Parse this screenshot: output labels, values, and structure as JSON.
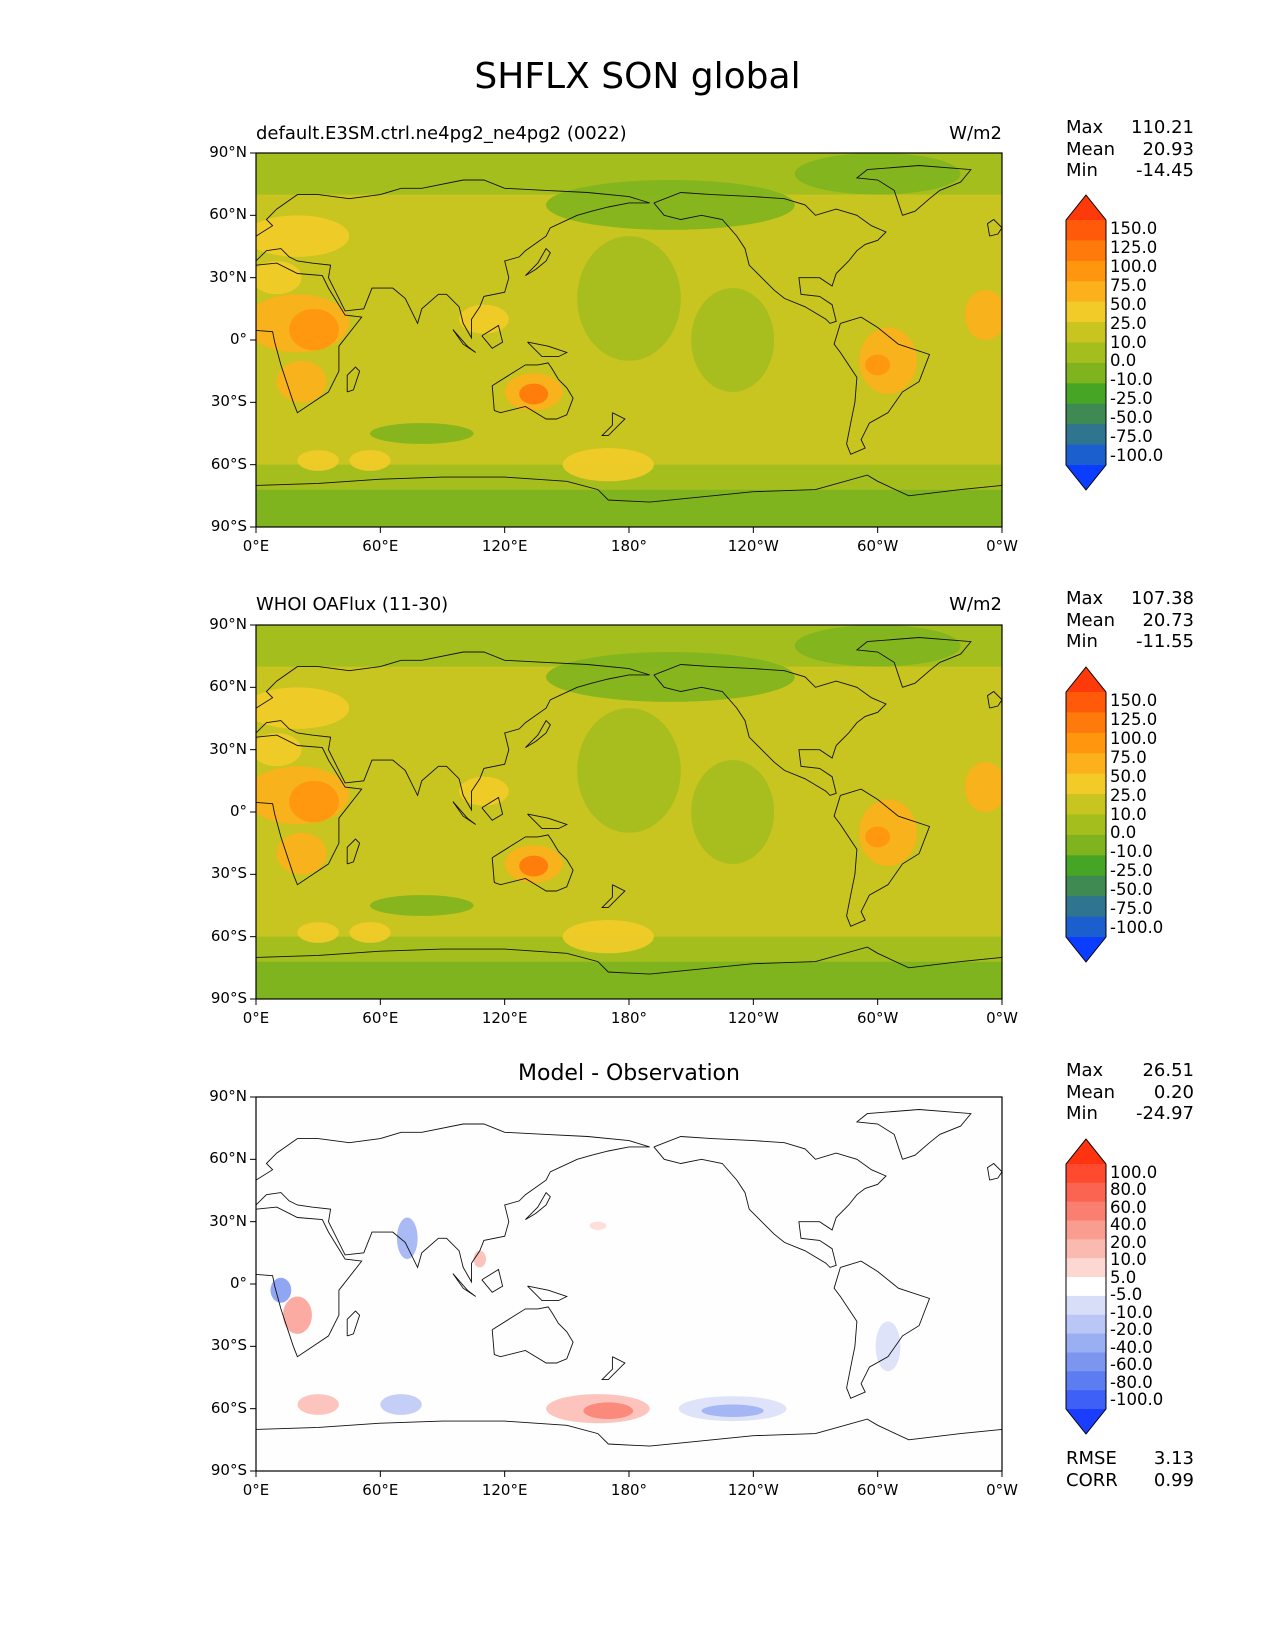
{
  "title": "SHFLX SON global",
  "chart_data": [
    {
      "type": "heatmap",
      "panel": "test",
      "left_title": "default.E3SM.ctrl.ne4pg2_ne4pg2 (0022)",
      "units": "W/m2",
      "stats": {
        "max": "110.21",
        "mean": "20.93",
        "min": "-14.45"
      },
      "colorbar_levels": [
        "150.0",
        "125.0",
        "100.0",
        "75.0",
        "50.0",
        "25.0",
        "10.0",
        "0.0",
        "-10.0",
        "-25.0",
        "-50.0",
        "-75.0",
        "-100.0"
      ],
      "colorbar_colors": [
        "#ff3a0a",
        "#ff5a0a",
        "#ff7a0a",
        "#ff960e",
        "#fbb01c",
        "#f2cb28",
        "#c8c420",
        "#a4be1e",
        "#80b41e",
        "#46a524",
        "#3e8a52",
        "#2f7590",
        "#1b5fcf",
        "#0a3dff"
      ],
      "ylim": [
        -90,
        90
      ],
      "xlim": [
        0,
        360
      ]
    },
    {
      "type": "heatmap",
      "panel": "reference",
      "left_title": "WHOI OAFlux (11-30)",
      "units": "W/m2",
      "stats": {
        "max": "107.38",
        "mean": "20.73",
        "min": "-11.55"
      },
      "colorbar_levels": [
        "150.0",
        "125.0",
        "100.0",
        "75.0",
        "50.0",
        "25.0",
        "10.0",
        "0.0",
        "-10.0",
        "-25.0",
        "-50.0",
        "-75.0",
        "-100.0"
      ],
      "colorbar_colors": [
        "#ff3a0a",
        "#ff5a0a",
        "#ff7a0a",
        "#ff960e",
        "#fbb01c",
        "#f2cb28",
        "#c8c420",
        "#a4be1e",
        "#80b41e",
        "#46a524",
        "#3e8a52",
        "#2f7590",
        "#1b5fcf",
        "#0a3dff"
      ],
      "ylim": [
        -90,
        90
      ],
      "xlim": [
        0,
        360
      ]
    },
    {
      "type": "heatmap",
      "panel": "difference",
      "center_title": "Model - Observation",
      "units": "",
      "stats": {
        "max": "26.51",
        "mean": "0.20",
        "min": "-24.97"
      },
      "metrics": {
        "rmse": "3.13",
        "corr": "0.99"
      },
      "colorbar_levels": [
        "100.0",
        "80.0",
        "60.0",
        "40.0",
        "20.0",
        "10.0",
        "5.0",
        "-5.0",
        "-10.0",
        "-20.0",
        "-40.0",
        "-60.0",
        "-80.0",
        "-100.0"
      ],
      "colorbar_colors": [
        "#ff3310",
        "#ff4a30",
        "#fb6450",
        "#f98070",
        "#fa9c90",
        "#fbbab0",
        "#fdd8d2",
        "#ffffff",
        "#d8def8",
        "#bac6f5",
        "#9aaef2",
        "#7c96f0",
        "#5c7cf2",
        "#3e60f6",
        "#1a3dff"
      ],
      "ylim": [
        -90,
        90
      ],
      "xlim": [
        0,
        360
      ]
    }
  ],
  "labels": {
    "max": "Max",
    "mean": "Mean",
    "min": "Min",
    "rmse": "RMSE",
    "corr": "CORR",
    "yticks": [
      "90°N",
      "60°N",
      "30°N",
      "0°",
      "30°S",
      "60°S",
      "90°S"
    ],
    "xticks": [
      "0°E",
      "60°E",
      "120°E",
      "180°",
      "120°W",
      "60°W",
      "0°W"
    ]
  }
}
